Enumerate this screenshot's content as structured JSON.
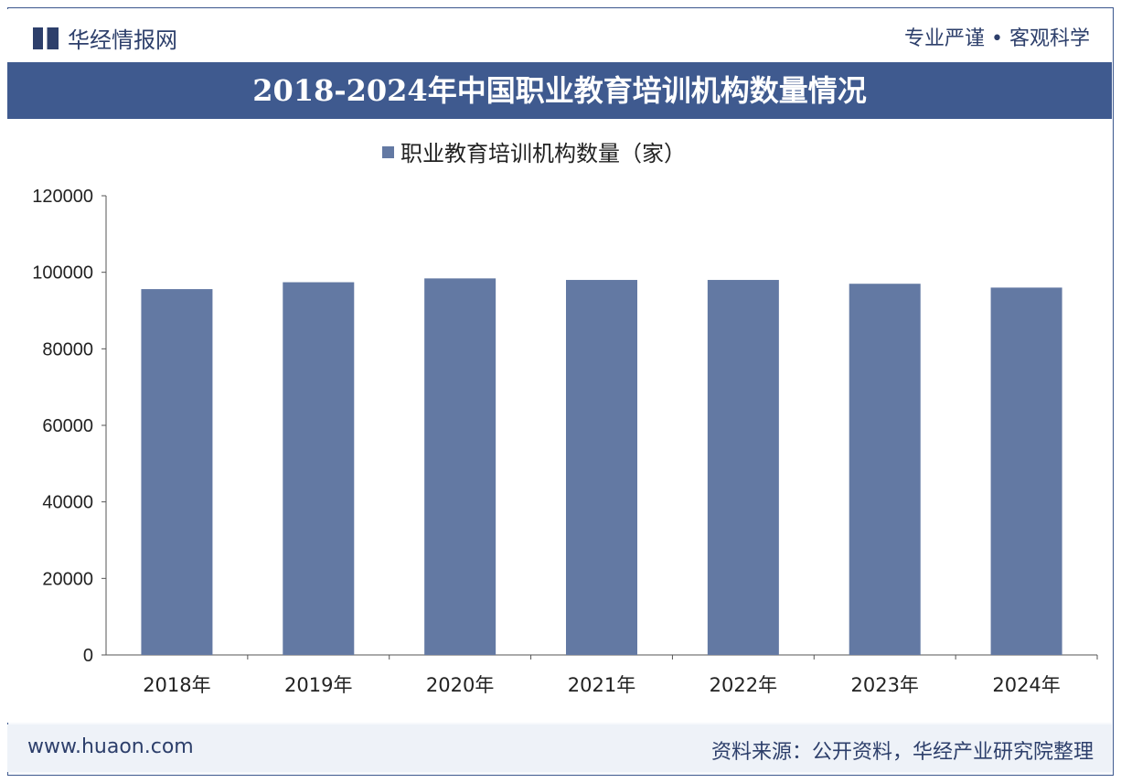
{
  "header": {
    "brand": "华经情报网",
    "slogan": "专业严谨 • 客观科学",
    "title": "2018-2024年中国职业教育培训机构数量情况"
  },
  "footer": {
    "website": "www.huaon.com",
    "source": "资料来源：公开资料，华经产业研究院整理"
  },
  "colors": {
    "bar": "#6379a3",
    "title_bg": "#3f5a8f"
  },
  "chart_data": {
    "type": "bar",
    "title": "2018-2024年中国职业教育培训机构数量情况",
    "categories": [
      "2018年",
      "2019年",
      "2020年",
      "2021年",
      "2022年",
      "2023年",
      "2024年"
    ],
    "series": [
      {
        "name": "职业教育培训机构数量（家）",
        "values": [
          95600,
          97400,
          98400,
          98000,
          98000,
          97000,
          96000
        ]
      }
    ],
    "ylim": [
      0,
      120000
    ],
    "yticks": [
      0,
      20000,
      40000,
      60000,
      80000,
      100000,
      120000
    ],
    "legend": "top-center",
    "grid": false
  }
}
